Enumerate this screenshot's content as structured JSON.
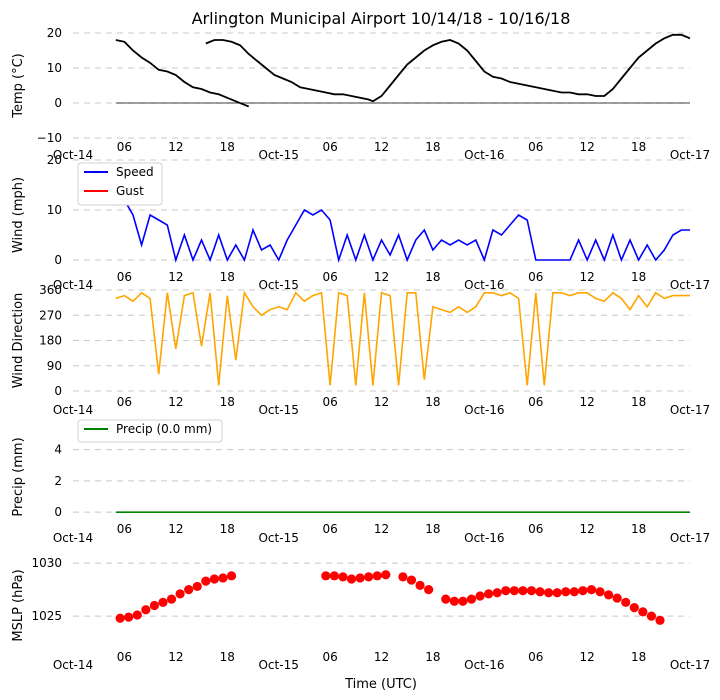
{
  "title": "Arlington Municipal Airport 10/14/18 - 10/16/18",
  "xlabel": "Time (UTC)",
  "x_ticks": [
    "Oct-14",
    "06",
    "12",
    "18",
    "Oct-15",
    "06",
    "12",
    "18",
    "Oct-16",
    "06",
    "12",
    "18",
    "Oct-17"
  ],
  "colors": {
    "temp": "#000000",
    "speed": "#0000ff",
    "gust": "#ff0000",
    "dir": "#ffa500",
    "precip": "#008000",
    "mslp": "#ff0000",
    "grid": "#c8c8c8"
  },
  "chart_data": [
    {
      "type": "line",
      "ylabel": "Temp (°C)",
      "ylim": [
        -10,
        20
      ],
      "yticks": [
        "−10",
        "0",
        "10",
        "20"
      ],
      "xlim": [
        0,
        72
      ],
      "zero_line": 0,
      "series": [
        {
          "name": "Temp",
          "points": [
            [
              5,
              18
            ],
            [
              6,
              17.5
            ],
            [
              7,
              15
            ],
            [
              8,
              13
            ],
            [
              9,
              11.5
            ],
            [
              10,
              9.5
            ],
            [
              11,
              9
            ],
            [
              12,
              8
            ],
            [
              13,
              6
            ],
            [
              14,
              4.5
            ],
            [
              15,
              4
            ],
            [
              16,
              3
            ],
            [
              17,
              2.5
            ],
            [
              18,
              1.5
            ],
            [
              19,
              0.5
            ],
            [
              20,
              -0.5
            ],
            [
              20.5,
              -1
            ],
            [
              null,
              null
            ],
            [
              15.5,
              17
            ],
            [
              16.5,
              18
            ],
            [
              17.5,
              18
            ],
            [
              18.5,
              17.5
            ],
            [
              19.5,
              16.5
            ],
            [
              20.5,
              14
            ],
            [
              21.5,
              12
            ],
            [
              22.5,
              10
            ],
            [
              23.5,
              8
            ],
            [
              24.5,
              7
            ],
            [
              25.5,
              6
            ],
            [
              26.5,
              4.5
            ],
            [
              27.5,
              4
            ],
            [
              28.5,
              3.5
            ],
            [
              29.5,
              3
            ],
            [
              30.5,
              2.5
            ],
            [
              31.5,
              2.5
            ],
            [
              32.5,
              2
            ],
            [
              33.5,
              1.5
            ],
            [
              34.5,
              1
            ],
            [
              35,
              0.5
            ],
            [
              36,
              2
            ],
            [
              37,
              5
            ],
            [
              38,
              8
            ],
            [
              39,
              11
            ],
            [
              40,
              13
            ],
            [
              41,
              15
            ],
            [
              42,
              16.5
            ],
            [
              43,
              17.5
            ],
            [
              44,
              18
            ],
            [
              45,
              17
            ],
            [
              46,
              15
            ],
            [
              47,
              12
            ],
            [
              48,
              9
            ],
            [
              49,
              7.5
            ],
            [
              50,
              7
            ],
            [
              51,
              6
            ],
            [
              52,
              5.5
            ],
            [
              53,
              5
            ],
            [
              54,
              4.5
            ],
            [
              55,
              4
            ],
            [
              56,
              3.5
            ],
            [
              57,
              3
            ],
            [
              58,
              3
            ],
            [
              59,
              2.5
            ],
            [
              60,
              2.5
            ],
            [
              61,
              2
            ],
            [
              62,
              2
            ],
            [
              63,
              4
            ],
            [
              64,
              7
            ],
            [
              65,
              10
            ],
            [
              66,
              13
            ],
            [
              67,
              15
            ],
            [
              68,
              17
            ],
            [
              69,
              18.5
            ],
            [
              70,
              19.5
            ],
            [
              71,
              19.5
            ],
            [
              72,
              18.5
            ]
          ]
        }
      ]
    },
    {
      "type": "line",
      "ylabel": "Wind (mph)",
      "ylim": [
        -2,
        20
      ],
      "yticks": [
        "0",
        "10",
        "20"
      ],
      "xlim": [
        0,
        72
      ],
      "legend": [
        "Speed",
        "Gust"
      ],
      "series": [
        {
          "name": "Speed",
          "points": [
            [
              5,
              11
            ],
            [
              6,
              12
            ],
            [
              7,
              9
            ],
            [
              8,
              3
            ],
            [
              9,
              9
            ],
            [
              10,
              8
            ],
            [
              11,
              7
            ],
            [
              12,
              0
            ],
            [
              13,
              5
            ],
            [
              14,
              0
            ],
            [
              15,
              4
            ],
            [
              16,
              0
            ],
            [
              17,
              5
            ],
            [
              18,
              0
            ],
            [
              19,
              3
            ],
            [
              20,
              0
            ],
            [
              21,
              6
            ],
            [
              22,
              2
            ],
            [
              23,
              3
            ],
            [
              24,
              0
            ],
            [
              25,
              4
            ],
            [
              26,
              7
            ],
            [
              27,
              10
            ],
            [
              28,
              9
            ],
            [
              29,
              10
            ],
            [
              30,
              8
            ],
            [
              31,
              0
            ],
            [
              32,
              5
            ],
            [
              33,
              0
            ],
            [
              34,
              5
            ],
            [
              35,
              0
            ],
            [
              36,
              4
            ],
            [
              37,
              1
            ],
            [
              38,
              5
            ],
            [
              39,
              0
            ],
            [
              40,
              4
            ],
            [
              41,
              6
            ],
            [
              42,
              2
            ],
            [
              43,
              4
            ],
            [
              44,
              3
            ],
            [
              45,
              4
            ],
            [
              46,
              3
            ],
            [
              47,
              4
            ],
            [
              48,
              0
            ],
            [
              49,
              6
            ],
            [
              50,
              5
            ],
            [
              51,
              7
            ],
            [
              52,
              9
            ],
            [
              53,
              8
            ],
            [
              54,
              0
            ],
            [
              55,
              0
            ],
            [
              56,
              0
            ],
            [
              57,
              0
            ],
            [
              58,
              0
            ],
            [
              59,
              4
            ],
            [
              60,
              0
            ],
            [
              61,
              4
            ],
            [
              62,
              0
            ],
            [
              63,
              5
            ],
            [
              64,
              0
            ],
            [
              65,
              4
            ],
            [
              66,
              0
            ],
            [
              67,
              3
            ],
            [
              68,
              0
            ],
            [
              69,
              2
            ],
            [
              70,
              5
            ],
            [
              71,
              6
            ],
            [
              72,
              6
            ]
          ]
        },
        {
          "name": "Gust",
          "points": []
        }
      ]
    },
    {
      "type": "line",
      "ylabel": "Wind Direction",
      "ylim": [
        0,
        360
      ],
      "yticks": [
        "0",
        "90",
        "180",
        "270",
        "360"
      ],
      "xlim": [
        0,
        72
      ],
      "series": [
        {
          "name": "Direction",
          "points": [
            [
              5,
              330
            ],
            [
              6,
              340
            ],
            [
              7,
              320
            ],
            [
              8,
              350
            ],
            [
              9,
              330
            ],
            [
              10,
              60
            ],
            [
              11,
              350
            ],
            [
              12,
              150
            ],
            [
              13,
              340
            ],
            [
              14,
              350
            ],
            [
              15,
              160
            ],
            [
              16,
              350
            ],
            [
              17,
              20
            ],
            [
              18,
              340
            ],
            [
              19,
              110
            ],
            [
              20,
              350
            ],
            [
              21,
              300
            ],
            [
              22,
              270
            ],
            [
              23,
              290
            ],
            [
              24,
              300
            ],
            [
              25,
              290
            ],
            [
              26,
              350
            ],
            [
              27,
              320
            ],
            [
              28,
              340
            ],
            [
              29,
              350
            ],
            [
              30,
              20
            ],
            [
              31,
              350
            ],
            [
              32,
              340
            ],
            [
              33,
              20
            ],
            [
              34,
              350
            ],
            [
              35,
              20
            ],
            [
              36,
              350
            ],
            [
              37,
              340
            ],
            [
              38,
              20
            ],
            [
              39,
              350
            ],
            [
              40,
              350
            ],
            [
              41,
              40
            ],
            [
              42,
              300
            ],
            [
              43,
              290
            ],
            [
              44,
              280
            ],
            [
              45,
              300
            ],
            [
              46,
              280
            ],
            [
              47,
              300
            ],
            [
              48,
              350
            ],
            [
              49,
              350
            ],
            [
              50,
              340
            ],
            [
              51,
              350
            ],
            [
              52,
              330
            ],
            [
              53,
              20
            ],
            [
              54,
              350
            ],
            [
              55,
              20
            ],
            [
              56,
              350
            ],
            [
              57,
              350
            ],
            [
              58,
              340
            ],
            [
              59,
              350
            ],
            [
              60,
              350
            ],
            [
              61,
              330
            ],
            [
              62,
              320
            ],
            [
              63,
              350
            ],
            [
              64,
              330
            ],
            [
              65,
              290
            ],
            [
              66,
              340
            ],
            [
              67,
              300
            ],
            [
              68,
              350
            ],
            [
              69,
              330
            ],
            [
              70,
              340
            ],
            [
              71,
              340
            ],
            [
              72,
              340
            ]
          ]
        }
      ]
    },
    {
      "type": "line",
      "ylabel": "Precip (mm)",
      "ylim": [
        -0.5,
        5
      ],
      "yticks": [
        "0",
        "2",
        "4"
      ],
      "xlim": [
        0,
        72
      ],
      "legend": [
        "Precip (0.0 mm)"
      ],
      "series": [
        {
          "name": "Precip (0.0 mm)",
          "points": [
            [
              5,
              0
            ],
            [
              72,
              0
            ]
          ]
        }
      ]
    },
    {
      "type": "scatter",
      "ylabel": "MSLP (hPa)",
      "ylim": [
        1021.8,
        1030.2
      ],
      "yticks": [
        "1025",
        "1030"
      ],
      "xlim": [
        0,
        72
      ],
      "series": [
        {
          "name": "MSLP",
          "points": [
            [
              5.5,
              1024.8
            ],
            [
              6.5,
              1024.9
            ],
            [
              7.5,
              1025.1
            ],
            [
              8.5,
              1025.6
            ],
            [
              9.5,
              1026
            ],
            [
              10.5,
              1026.3
            ],
            [
              11.5,
              1026.6
            ],
            [
              12.5,
              1027.1
            ],
            [
              13.5,
              1027.5
            ],
            [
              14.5,
              1027.8
            ],
            [
              15.5,
              1028.3
            ],
            [
              16.5,
              1028.5
            ],
            [
              17.5,
              1028.6
            ],
            [
              18.5,
              1028.8
            ],
            [
              29.5,
              1028.8
            ],
            [
              30.5,
              1028.8
            ],
            [
              31.5,
              1028.7
            ],
            [
              32.5,
              1028.5
            ],
            [
              33.5,
              1028.6
            ],
            [
              34.5,
              1028.7
            ],
            [
              35.5,
              1028.8
            ],
            [
              36.5,
              1028.9
            ],
            [
              38.5,
              1028.7
            ],
            [
              39.5,
              1028.4
            ],
            [
              40.5,
              1027.9
            ],
            [
              41.5,
              1027.5
            ],
            [
              43.5,
              1026.6
            ],
            [
              44.5,
              1026.4
            ],
            [
              45.5,
              1026.4
            ],
            [
              46.5,
              1026.6
            ],
            [
              47.5,
              1026.9
            ],
            [
              48.5,
              1027.1
            ],
            [
              49.5,
              1027.2
            ],
            [
              50.5,
              1027.4
            ],
            [
              51.5,
              1027.4
            ],
            [
              52.5,
              1027.4
            ],
            [
              53.5,
              1027.4
            ],
            [
              54.5,
              1027.3
            ],
            [
              55.5,
              1027.2
            ],
            [
              56.5,
              1027.2
            ],
            [
              57.5,
              1027.3
            ],
            [
              58.5,
              1027.3
            ],
            [
              59.5,
              1027.4
            ],
            [
              60.5,
              1027.5
            ],
            [
              61.5,
              1027.3
            ],
            [
              62.5,
              1027
            ],
            [
              63.5,
              1026.7
            ],
            [
              64.5,
              1026.3
            ],
            [
              65.5,
              1025.8
            ],
            [
              66.5,
              1025.4
            ],
            [
              67.5,
              1025
            ],
            [
              68.5,
              1024.6
            ]
          ]
        }
      ]
    }
  ]
}
